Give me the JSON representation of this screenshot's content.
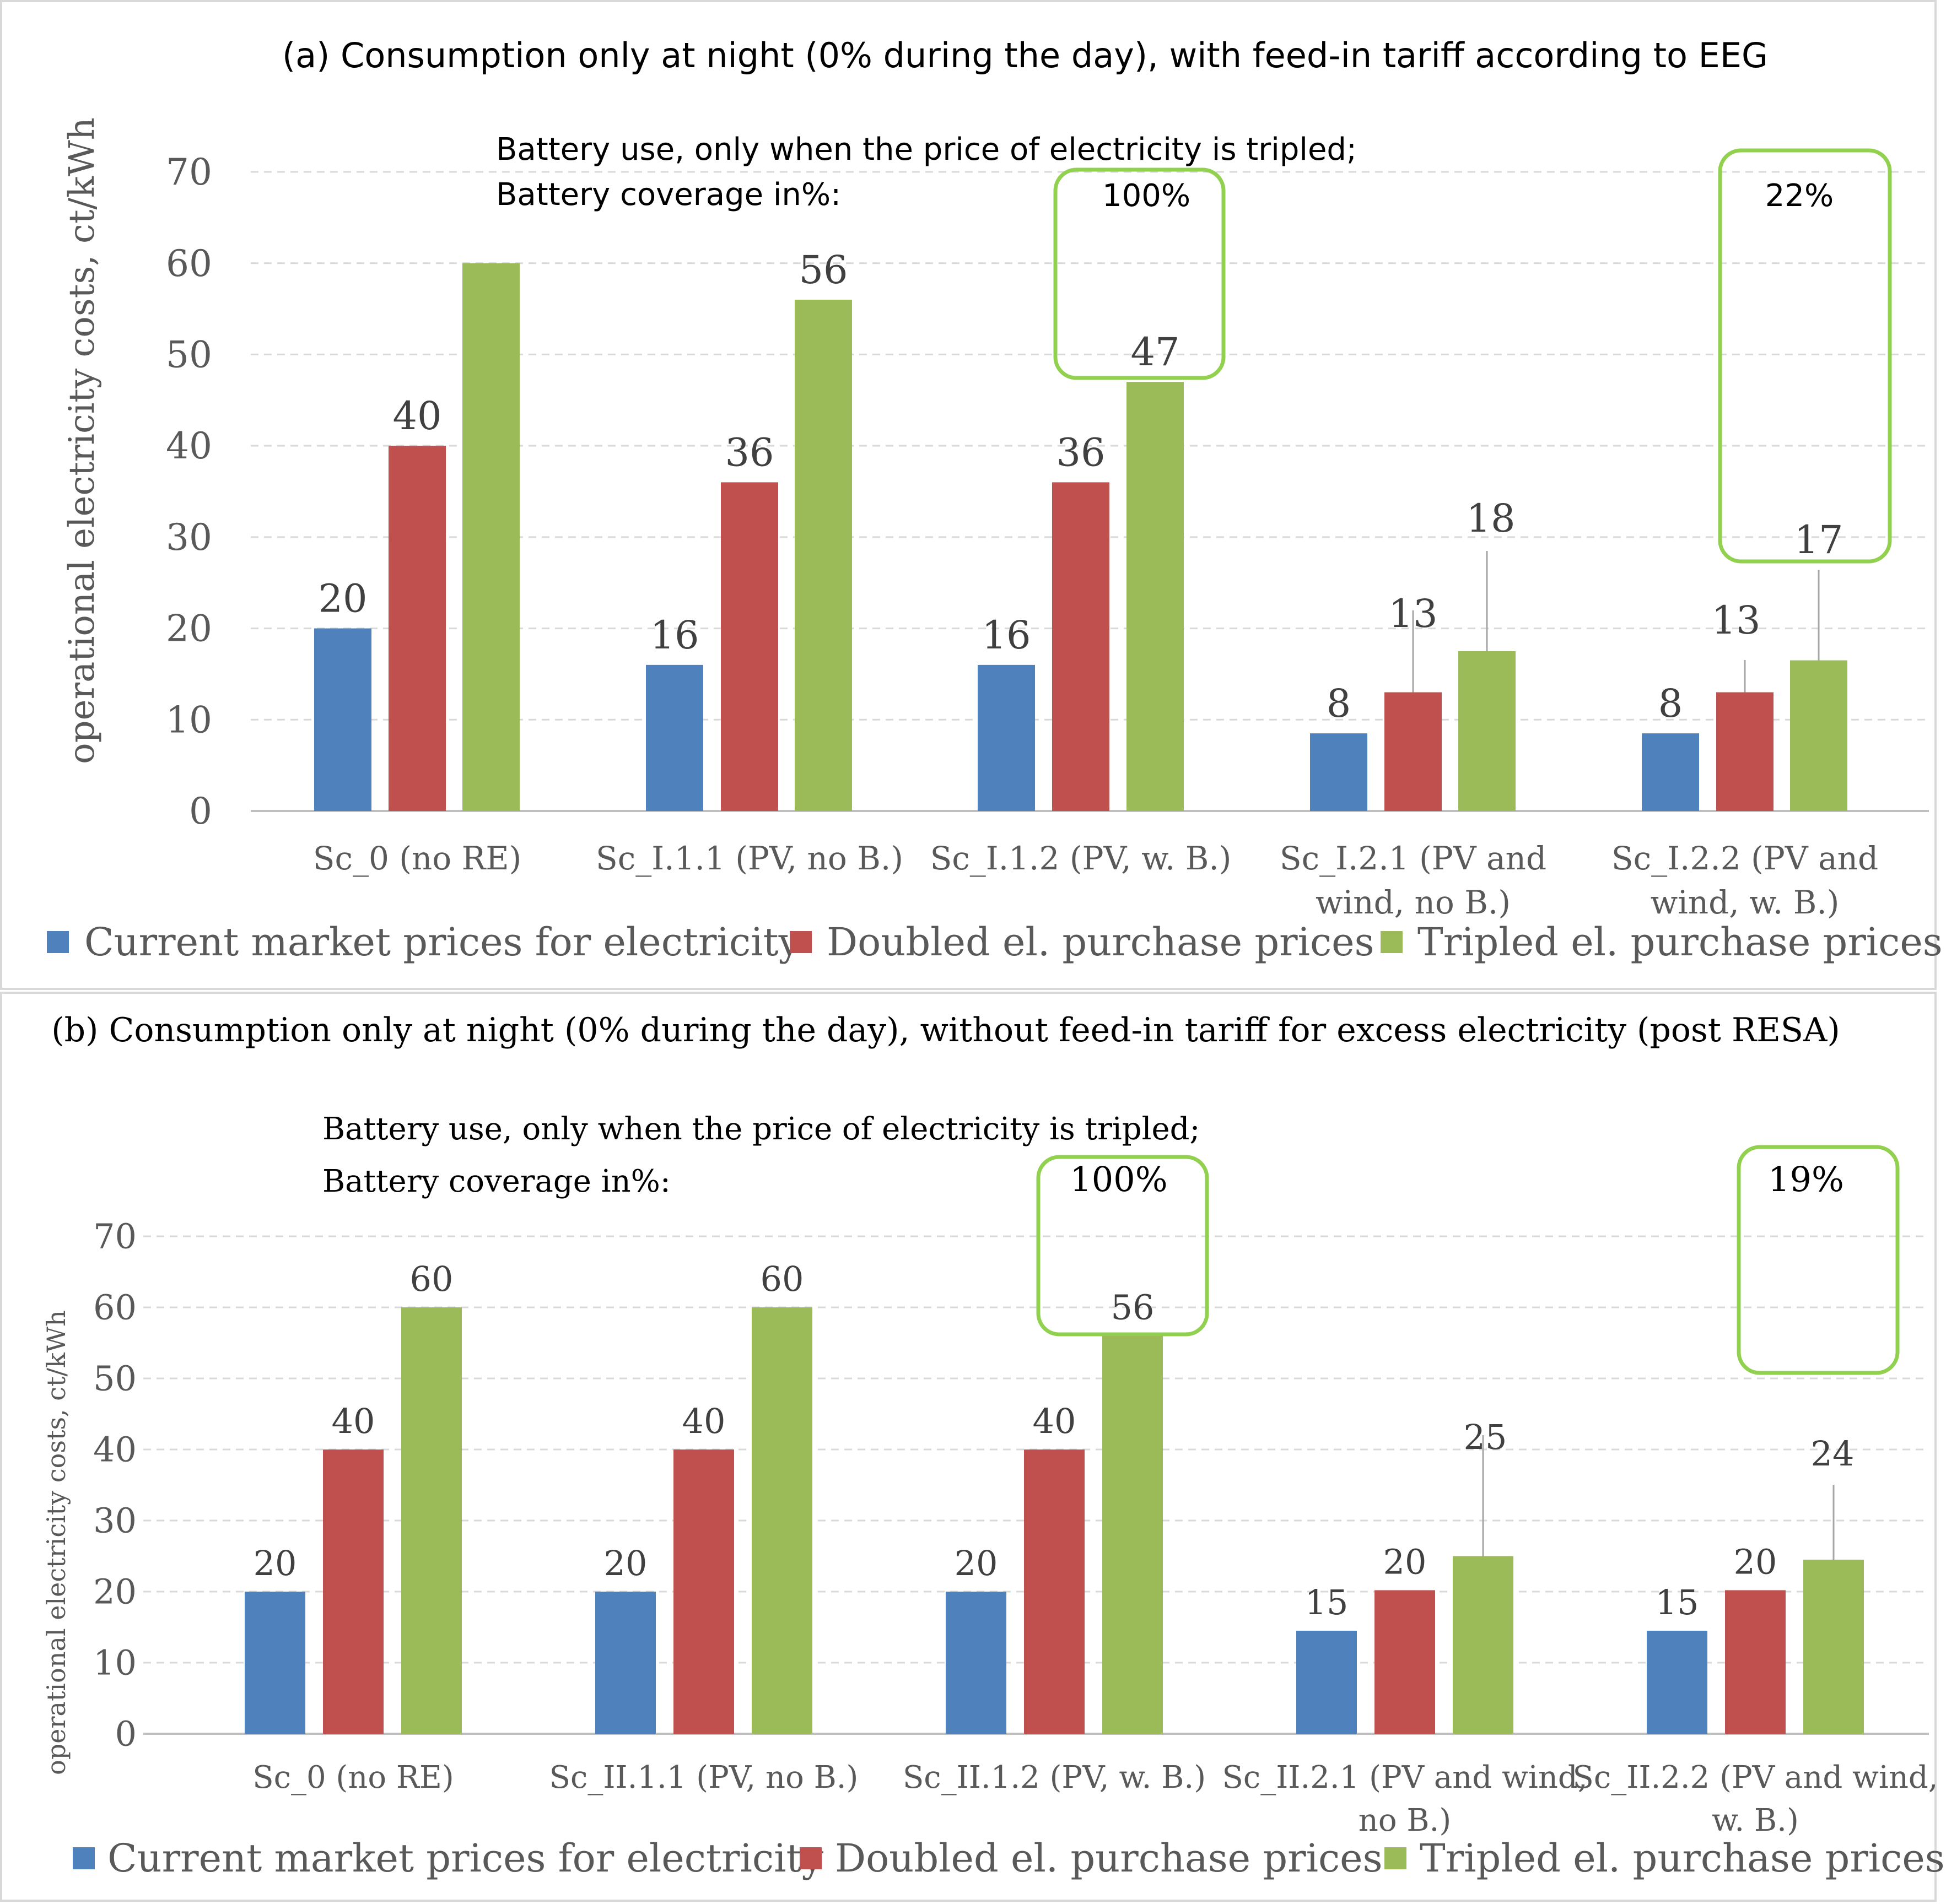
{
  "colors": {
    "current": "#4F81BD",
    "doubled": "#C0504D",
    "tripled": "#9BBB59",
    "box": "#92D050",
    "grid": "#D9D9D9",
    "axis_text": "#595959"
  },
  "legend": {
    "current": "Current market prices for electricity",
    "doubled": "Doubled el. purchase prices",
    "tripled": "Tripled el. purchase prices"
  },
  "chart_data": [
    {
      "type": "bar",
      "title": "(a) Consumption only at night (0% during the day), with feed-in tariff according to EEG",
      "ylabel": "operational electricity costs, ct/kWh",
      "xlabel": "",
      "ylim": [
        0,
        70
      ],
      "yticks": [
        "0",
        "10",
        "20",
        "30",
        "40",
        "50",
        "60",
        "70"
      ],
      "grid": true,
      "legend_position": "bottom",
      "note_line1": "Battery use, only when the price of electricity is tripled;",
      "note_line2": "Battery coverage in%:",
      "categories": [
        [
          "Sc_0 (no RE)"
        ],
        [
          "Sc_I.1.1 (PV, no B.)"
        ],
        [
          "Sc_I.1.2 (PV, w. B.)"
        ],
        [
          "Sc_I.2.1 (PV and",
          "wind, no B.)"
        ],
        [
          "Sc_I.2.2 (PV and",
          "wind, w. B.)"
        ]
      ],
      "series": [
        {
          "name": "Current market prices for electricity",
          "values": [
            20,
            16,
            16,
            8.5,
            8.5
          ],
          "labels": [
            "20",
            "16",
            "16",
            "8",
            "8"
          ]
        },
        {
          "name": "Doubled el. purchase prices",
          "values": [
            40,
            36,
            36,
            13,
            13
          ],
          "labels": [
            "40",
            "36",
            "36",
            "13",
            "13"
          ]
        },
        {
          "name": "Tripled el. purchase prices",
          "values": [
            60,
            56,
            47,
            17.5,
            16.5
          ],
          "labels": [
            "",
            "56",
            "47",
            "18",
            "17"
          ]
        }
      ],
      "battery_coverage": [
        {
          "category_index": 2,
          "label": "100%"
        },
        {
          "category_index": 4,
          "label": "22%"
        }
      ]
    },
    {
      "type": "bar",
      "title": "(b) Consumption only at night (0% during the day), without feed-in tariff for excess electricity (post RESA)",
      "ylabel": "operational electricity costs, ct/kWh",
      "xlabel": "",
      "ylim": [
        0,
        70
      ],
      "yticks": [
        "0",
        "10",
        "20",
        "30",
        "40",
        "50",
        "60",
        "70"
      ],
      "grid": true,
      "legend_position": "bottom",
      "note_line1": "Battery use, only when the price of electricity is tripled;",
      "note_line2": "Battery coverage in%:",
      "categories": [
        [
          "Sc_0 (no RE)"
        ],
        [
          "Sc_II.1.1 (PV, no B.)"
        ],
        [
          "Sc_II.1.2 (PV, w. B.)"
        ],
        [
          "Sc_II.2.1 (PV and wind,",
          "no B.)"
        ],
        [
          "Sc_II.2.2 (PV and wind,",
          "w. B.)"
        ]
      ],
      "series": [
        {
          "name": "Current market prices for electricity",
          "values": [
            20,
            20,
            20,
            14.5,
            14.5
          ],
          "labels": [
            "20",
            "20",
            "20",
            "15",
            "15"
          ]
        },
        {
          "name": "Doubled el. purchase prices",
          "values": [
            40,
            40,
            40,
            20.2,
            20.2
          ],
          "labels": [
            "40",
            "40",
            "40",
            "20",
            "20"
          ]
        },
        {
          "name": "Tripled el. purchase prices",
          "values": [
            60,
            60,
            56,
            25,
            24.5
          ],
          "labels": [
            "60",
            "60",
            "56",
            "25",
            "24"
          ]
        }
      ],
      "battery_coverage": [
        {
          "category_index": 2,
          "label": "100%"
        },
        {
          "category_index": 4,
          "label": "19%"
        }
      ]
    }
  ]
}
